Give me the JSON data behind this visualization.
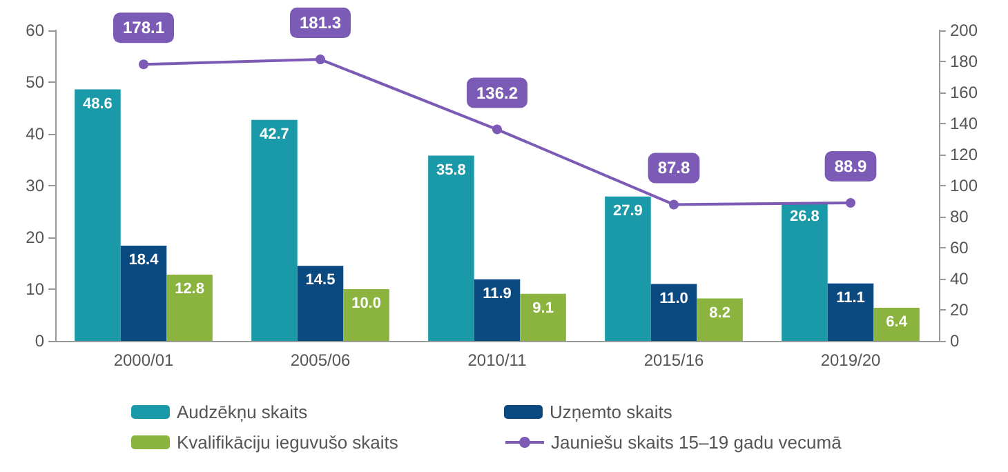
{
  "chart_data": {
    "type": "bar",
    "categories": [
      "2000/01",
      "2005/06",
      "2010/11",
      "2015/16",
      "2019/20"
    ],
    "series": [
      {
        "name": "Audzēkņu skaits",
        "color": "#1a9aa8",
        "values": [
          48.6,
          42.7,
          35.8,
          27.9,
          26.8
        ]
      },
      {
        "name": "Uzņemto skaits",
        "color": "#0b4a80",
        "values": [
          18.4,
          14.5,
          11.9,
          11.0,
          11.1
        ],
        "value_labels": [
          "18.4",
          "14.5",
          "11.9",
          "11.0",
          "11.1"
        ]
      },
      {
        "name": "Kvalifikāciju ieguvušo skaits",
        "color": "#8ab43e",
        "values": [
          12.8,
          10.0,
          9.1,
          8.2,
          6.4
        ],
        "value_labels": [
          "12.8",
          "10.0",
          "9.1",
          "8.2",
          "6.4"
        ]
      },
      {
        "name": "Jauniešu skaits 15–19 gadu vecumā",
        "type": "line",
        "axis": "y2",
        "color": "#7b5bb5",
        "values": [
          178.1,
          181.3,
          136.2,
          87.8,
          88.9
        ]
      }
    ],
    "ylim": [
      0,
      60
    ],
    "yticks": [
      0,
      10,
      20,
      30,
      40,
      50,
      60
    ],
    "y2lim": [
      0,
      200
    ],
    "y2ticks": [
      0,
      20,
      40,
      60,
      80,
      100,
      120,
      140,
      160,
      180,
      200
    ],
    "data_labels": true,
    "legend": "bottom",
    "grid": false,
    "marker": "circle",
    "line_style": "solid"
  }
}
